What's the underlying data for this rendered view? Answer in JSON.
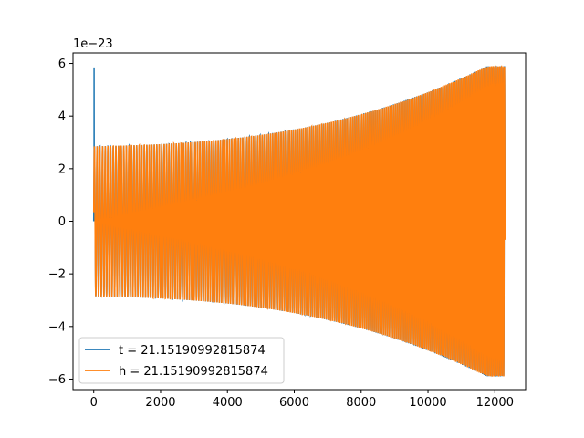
{
  "chart_data": {
    "type": "line",
    "title": "",
    "xlabel": "",
    "ylabel": "",
    "y_offset_label": "1e−23",
    "xlim": [
      -620,
      12920
    ],
    "ylim": [
      -6.4,
      6.4
    ],
    "x_ticks": [
      0,
      2000,
      4000,
      6000,
      8000,
      10000,
      12000
    ],
    "x_tick_labels": [
      "0",
      "2000",
      "4000",
      "6000",
      "8000",
      "10000",
      "12000"
    ],
    "y_ticks": [
      -6,
      -4,
      -2,
      0,
      2,
      4,
      6
    ],
    "y_tick_labels": [
      "−6",
      "−4",
      "−2",
      "0",
      "2",
      "4",
      "6"
    ],
    "grid": false,
    "legend_position": "lower-left",
    "series": [
      {
        "name": "t = 21.15190992815874",
        "color": "#1f77b4",
        "x_start": 0,
        "x_end": 12300,
        "start_spike": 5.85,
        "envelope_start": 2.85,
        "envelope_end": 5.9,
        "cycles": 150
      },
      {
        "name": "h = 21.15190992815874",
        "color": "#ff7f0e",
        "x_start": 0,
        "x_end": 12300,
        "envelope_start": 2.85,
        "envelope_end": 5.9,
        "cycles": 150
      }
    ]
  }
}
